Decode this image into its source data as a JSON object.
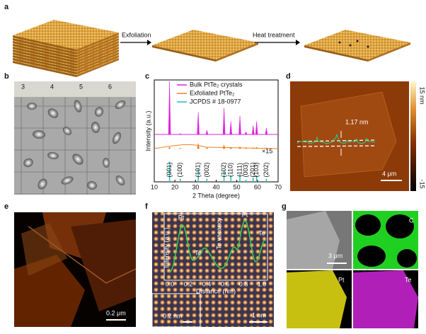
{
  "panels": {
    "a": {
      "label": "a",
      "arrow1": "Exfoliation",
      "arrow2": "Heat treatment"
    },
    "b": {
      "label": "b",
      "ruler": [
        "3",
        "4",
        "5",
        "6"
      ]
    },
    "c": {
      "label": "c"
    },
    "d": {
      "label": "d",
      "height": "1.17 nm",
      "scale": "4 μm",
      "colorbar_max": "15 nm",
      "colorbar_min": "-15"
    },
    "e": {
      "label": "e",
      "scale": "0.2 μm"
    },
    "f": {
      "label": "f",
      "profile_labels": [
        "Pt",
        "Te",
        "Te vacancy",
        "Pt",
        "Te"
      ],
      "xlabel": "Distance (nm)",
      "ylabel": "Intensity (a.u.)",
      "xticks": [
        "0.0",
        "0.2",
        "0.4",
        "0.6",
        "0.8",
        "1.0"
      ],
      "scale_inset": "0.2 nm",
      "scale": "1 nm"
    },
    "g": {
      "label": "g",
      "scale": "3 μm",
      "maps": [
        "C",
        "Pt",
        "Te"
      ]
    }
  },
  "chart_data": {
    "type": "line",
    "xlabel": "2 Theta (degree)",
    "ylabel": "Intensity (a.u.)",
    "annotation": "×15",
    "xlim": [
      10,
      70
    ],
    "xticks": [
      10,
      20,
      30,
      40,
      50,
      60,
      70
    ],
    "x": [
      17.4,
      22.6,
      31.3,
      35.5,
      43.8,
      47.1,
      51.5,
      54.4,
      57.9,
      59.6,
      64.3
    ],
    "hkl": [
      "(001)",
      "(100)",
      "(101)",
      "(002)",
      "(102)",
      "(110)",
      "(111)",
      "(003)",
      "(201)",
      "(103)",
      "(202)"
    ],
    "series": [
      {
        "name": "Bulk PtTe₂ crystals",
        "color": "#e020e0",
        "values": [
          1.0,
          0.02,
          0.42,
          0.08,
          0.5,
          0.25,
          0.35,
          0.05,
          0.17,
          0.25,
          0.12
        ]
      },
      {
        "name": "Exfoliated PtTe₂",
        "color": "#f08020",
        "values": [
          0.03,
          0.01,
          0.1,
          0.02,
          0.07,
          0.03,
          0.04,
          0.01,
          0.02,
          0.03,
          0.02
        ]
      },
      {
        "name": "JCPDS # 18-0977",
        "color": "#20c0c0",
        "values": [
          0.38,
          0.06,
          0.25,
          0.06,
          0.22,
          0.12,
          0.15,
          0.04,
          0.08,
          0.12,
          0.06
        ]
      }
    ]
  }
}
